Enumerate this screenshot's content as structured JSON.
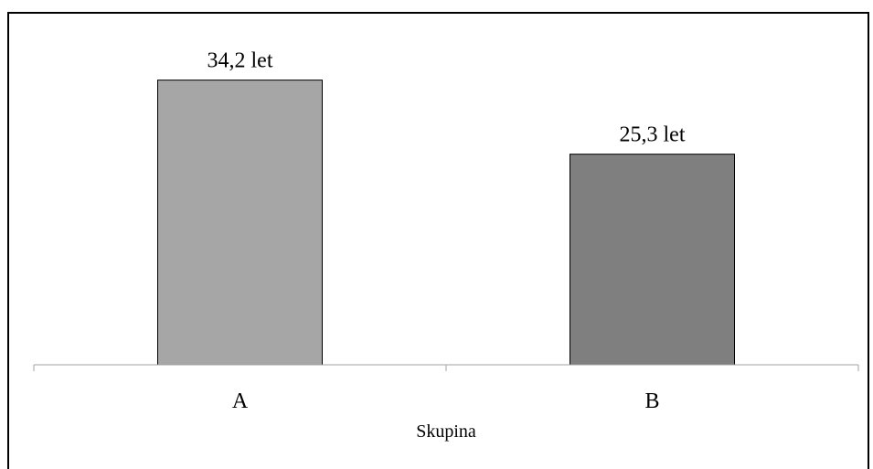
{
  "chart_data": {
    "type": "bar",
    "categories": [
      "A",
      "B"
    ],
    "values": [
      34.2,
      25.3
    ],
    "data_labels": [
      "34,2 let",
      "25,3 let"
    ],
    "xlabel": "Skupina",
    "ylabel": "",
    "ylim": [
      0,
      38
    ],
    "grid": false,
    "legend": "none",
    "colors": [
      "#a6a6a6",
      "#7f7f7f"
    ],
    "edge_color": "#000000"
  }
}
